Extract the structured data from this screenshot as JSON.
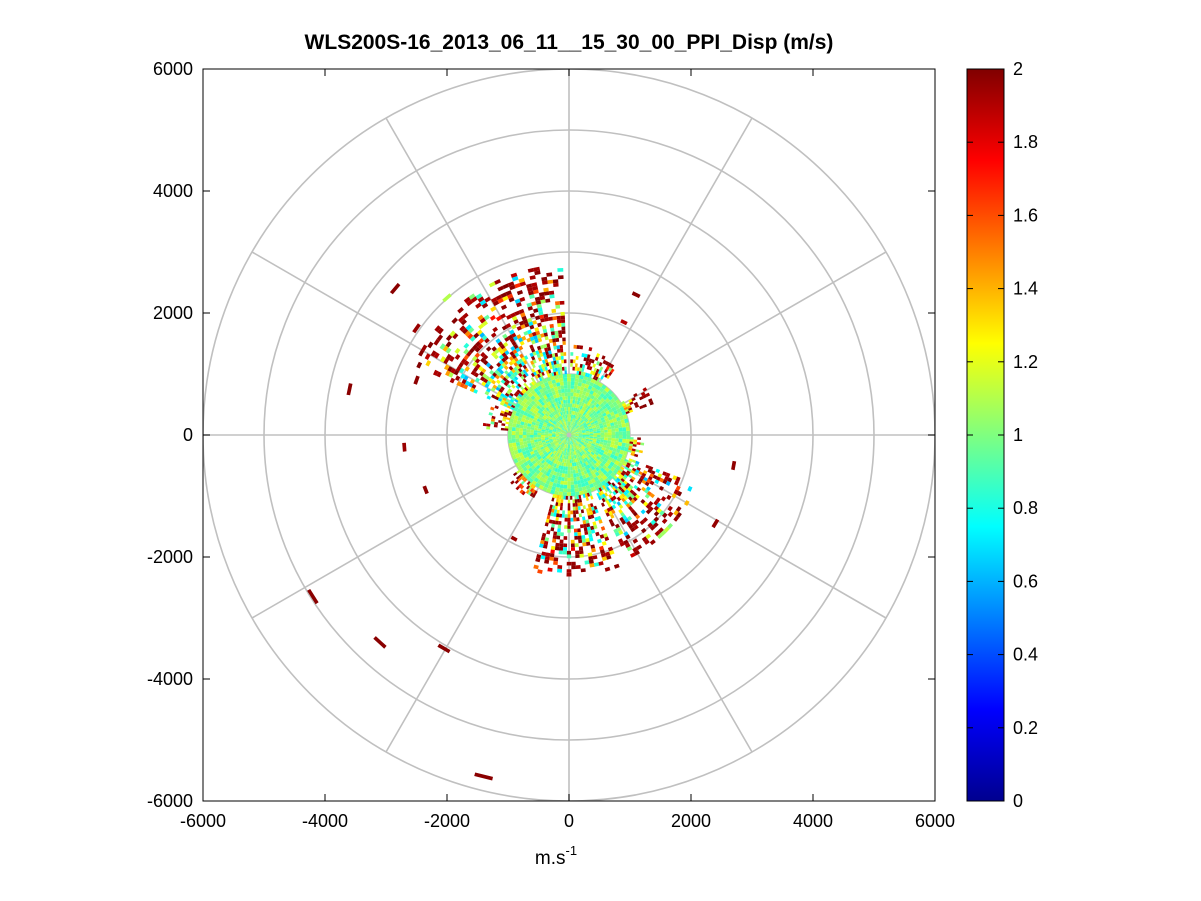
{
  "chart_data": {
    "type": "heatmap",
    "subtype": "polar-ppi",
    "title": "WLS200S-16_2013_06_11__15_30_00_PPI_Disp (m/s)",
    "xlabel_main": "m.s",
    "xlabel_sup": "-1",
    "ylabel": "",
    "xlim": [
      -6000,
      6000
    ],
    "ylim": [
      -6000,
      6000
    ],
    "x_ticks": [
      "-6000",
      "-4000",
      "-2000",
      "0",
      "2000",
      "4000",
      "6000"
    ],
    "y_ticks": [
      "6000",
      "4000",
      "2000",
      "0",
      "-2000",
      "-4000",
      "-6000"
    ],
    "x_tick_values": [
      -6000,
      -4000,
      -2000,
      0,
      2000,
      4000,
      6000
    ],
    "y_tick_values": [
      6000,
      4000,
      2000,
      0,
      -2000,
      -4000,
      -6000
    ],
    "polar_rings": [
      1000,
      2000,
      3000,
      4000,
      5000,
      6000
    ],
    "polar_spokes_deg": [
      0,
      30,
      60,
      90,
      120,
      150,
      180,
      210,
      240,
      270,
      300,
      330
    ],
    "grid": true,
    "colorbar": {
      "min": 0,
      "max": 2,
      "colormap": "jet",
      "ticks": [
        "0",
        "0.2",
        "0.4",
        "0.6",
        "0.8",
        "1",
        "1.2",
        "1.4",
        "1.6",
        "1.8",
        "2"
      ],
      "tick_values": [
        0,
        0.2,
        0.4,
        0.6,
        0.8,
        1,
        1.2,
        1.4,
        1.6,
        1.8,
        2
      ]
    },
    "near_field": {
      "r_min": 0,
      "r_max": 1000,
      "value_min": 0.85,
      "value_max": 1.15
    },
    "sectors": [
      {
        "az_start": 20,
        "az_end": 32,
        "r_min": 1000,
        "r_max": 1450,
        "v_min": 0.9,
        "v_max": 2.0
      },
      {
        "az_start": 55,
        "az_end": 88,
        "r_min": 1000,
        "r_max": 1450,
        "v_min": 0.7,
        "v_max": 2.0
      },
      {
        "az_start": 92,
        "az_end": 155,
        "r_min": 1000,
        "r_max": 2800,
        "v_min": 0.6,
        "v_max": 2.0
      },
      {
        "az_start": 158,
        "az_end": 175,
        "r_min": 1000,
        "r_max": 1400,
        "v_min": 0.8,
        "v_max": 2.0
      },
      {
        "az_start": 215,
        "az_end": 240,
        "r_min": 1000,
        "r_max": 1200,
        "v_min": 0.9,
        "v_max": 2.0
      },
      {
        "az_start": 255,
        "az_end": 290,
        "r_min": 1000,
        "r_max": 2300,
        "v_min": 0.7,
        "v_max": 2.0
      },
      {
        "az_start": 295,
        "az_end": 338,
        "r_min": 1000,
        "r_max": 2250,
        "v_min": 0.6,
        "v_max": 2.0
      },
      {
        "az_start": 342,
        "az_end": 358,
        "r_min": 1000,
        "r_max": 1200,
        "v_min": 0.8,
        "v_max": 2.0
      }
    ],
    "isolated_cells": [
      {
        "x": -2850,
        "y": 2400,
        "v": 1.98
      },
      {
        "x": -2000,
        "y": 2250,
        "v": 1.1
      },
      {
        "x": -2500,
        "y": 1750,
        "v": 1.95
      },
      {
        "x": -3600,
        "y": 750,
        "v": 1.98
      },
      {
        "x": -2500,
        "y": 900,
        "v": 1.97
      },
      {
        "x": 1100,
        "y": 2300,
        "v": 1.98
      },
      {
        "x": 900,
        "y": 1850,
        "v": 1.9
      },
      {
        "x": -2700,
        "y": -200,
        "v": 1.95
      },
      {
        "x": -2350,
        "y": -900,
        "v": 1.97
      },
      {
        "x": -4200,
        "y": -2650,
        "v": 1.98
      },
      {
        "x": -3100,
        "y": -3400,
        "v": 1.98
      },
      {
        "x": -2050,
        "y": -3500,
        "v": 1.98
      },
      {
        "x": -1400,
        "y": -5600,
        "v": 1.98
      },
      {
        "x": -900,
        "y": -1700,
        "v": 1.95
      },
      {
        "x": 2700,
        "y": -500,
        "v": 1.97
      },
      {
        "x": 2400,
        "y": -1450,
        "v": 1.96
      }
    ]
  }
}
